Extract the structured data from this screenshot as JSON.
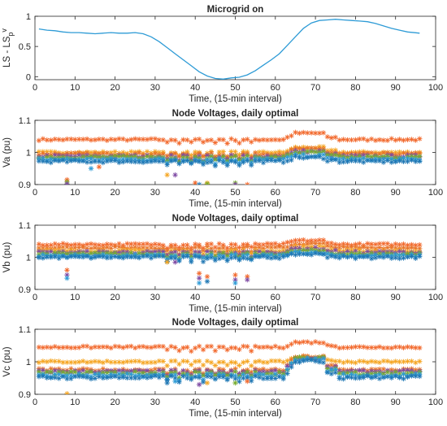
{
  "chart_data": [
    {
      "type": "line",
      "title": "Microgrid on",
      "xlabel": "Time, (15-min interval)",
      "ylabel": "LS - LS",
      "ylabel_sub": "p",
      "ylabel_sup": "v",
      "xlim": [
        0,
        100
      ],
      "ylim": [
        -0.05,
        1
      ],
      "xticks": [
        0,
        10,
        20,
        30,
        40,
        50,
        60,
        70,
        80,
        90,
        100
      ],
      "yticks": [
        0,
        0.5,
        1
      ],
      "ytick_labels": [
        "0",
        "0.5",
        "1"
      ],
      "color": "#2E9BD6",
      "series": [
        {
          "x": [
            1,
            3,
            5,
            7,
            9,
            11,
            13,
            15,
            17,
            19,
            21,
            23,
            25,
            27,
            29,
            31,
            33,
            35,
            37,
            39,
            41,
            43,
            45,
            47,
            49,
            51,
            53,
            55,
            57,
            59,
            61,
            63,
            65,
            67,
            69,
            71,
            73,
            75,
            77,
            79,
            81,
            83,
            85,
            87,
            89,
            91,
            93,
            96
          ],
          "values": [
            0.79,
            0.77,
            0.76,
            0.74,
            0.73,
            0.73,
            0.72,
            0.71,
            0.72,
            0.73,
            0.72,
            0.72,
            0.73,
            0.71,
            0.66,
            0.58,
            0.48,
            0.38,
            0.28,
            0.18,
            0.08,
            0.01,
            -0.03,
            -0.04,
            -0.02,
            -0.01,
            0.03,
            0.1,
            0.19,
            0.28,
            0.38,
            0.52,
            0.66,
            0.8,
            0.89,
            0.93,
            0.94,
            0.95,
            0.94,
            0.93,
            0.92,
            0.91,
            0.88,
            0.84,
            0.8,
            0.77,
            0.74,
            0.72
          ]
        }
      ]
    },
    {
      "type": "scatter",
      "title": "Node Voltages, daily optimal",
      "xlabel": "Time, (15-min interval)",
      "ylabel": "Va (pu)",
      "xlim": [
        0,
        100
      ],
      "ylim": [
        0.9,
        1.1
      ],
      "xticks": [
        0,
        10,
        20,
        30,
        40,
        50,
        60,
        70,
        80,
        90,
        100
      ],
      "yticks": [
        0.9,
        1,
        1.1
      ],
      "ytick_labels": [
        "0.9",
        "1",
        "1.1"
      ],
      "x_range": [
        1,
        96
      ],
      "series": [
        {
          "name": "",
          "base": 1.04,
          "noise": 0.003,
          "color": "#F26A2E",
          "bump": 0.02
        },
        {
          "name": "",
          "base": 1.0,
          "noise": 0.003,
          "color": "#F5A623",
          "bump": 0.015
        },
        {
          "name": "",
          "base": 0.995,
          "noise": 0.004,
          "color": "#E8742A",
          "bump": 0.015
        },
        {
          "name": "",
          "base": 0.988,
          "noise": 0.004,
          "color": "#7E4AA3",
          "bump": 0.015
        },
        {
          "name": "",
          "base": 0.985,
          "noise": 0.004,
          "color": "#77AC30",
          "bump": 0.015
        },
        {
          "name": "",
          "base": 0.978,
          "noise": 0.004,
          "color": "#2E9BD6",
          "bump": 0.012
        },
        {
          "name": "",
          "base": 0.972,
          "noise": 0.004,
          "color": "#1F77B4",
          "bump": 0.012
        }
      ],
      "outliers": [
        {
          "x": 8,
          "y": 0.915,
          "color": "#F26A2E"
        },
        {
          "x": 8,
          "y": 0.908,
          "color": "#77AC30"
        },
        {
          "x": 8,
          "y": 0.902,
          "color": "#7E4AA3"
        },
        {
          "x": 40,
          "y": 0.905,
          "color": "#F26A2E"
        },
        {
          "x": 41,
          "y": 0.9,
          "color": "#1F77B4"
        },
        {
          "x": 43,
          "y": 0.905,
          "color": "#F5A623"
        },
        {
          "x": 43,
          "y": 0.902,
          "color": "#77AC30"
        },
        {
          "x": 50,
          "y": 0.905,
          "color": "#77AC30"
        },
        {
          "x": 50,
          "y": 0.9,
          "color": "#7E4AA3"
        },
        {
          "x": 53,
          "y": 0.9,
          "color": "#F26A2E"
        },
        {
          "x": 33,
          "y": 0.93,
          "color": "#F5A623"
        },
        {
          "x": 35,
          "y": 0.93,
          "color": "#7E4AA3"
        },
        {
          "x": 14,
          "y": 0.95,
          "color": "#2E9BD6"
        },
        {
          "x": 16,
          "y": 0.955,
          "color": "#F26A2E"
        }
      ]
    },
    {
      "type": "scatter",
      "title": "Node Voltages, daily optimal",
      "xlabel": "Time, (15-min interval)",
      "ylabel": "Vb (pu)",
      "xlim": [
        0,
        100
      ],
      "ylim": [
        0.9,
        1.1
      ],
      "xticks": [
        0,
        10,
        20,
        30,
        40,
        50,
        60,
        70,
        80,
        90,
        100
      ],
      "yticks": [
        0.9,
        1,
        1.1
      ],
      "ytick_labels": [
        "0.9",
        "1",
        "1.1"
      ],
      "x_range": [
        1,
        96
      ],
      "series": [
        {
          "name": "",
          "base": 1.04,
          "noise": 0.003,
          "color": "#F26A2E",
          "bump": 0.012
        },
        {
          "name": "",
          "base": 1.03,
          "noise": 0.003,
          "color": "#E8742A",
          "bump": 0.012
        },
        {
          "name": "",
          "base": 1.02,
          "noise": 0.003,
          "color": "#F5A623",
          "bump": 0.012
        },
        {
          "name": "",
          "base": 1.015,
          "noise": 0.004,
          "color": "#7E4AA3",
          "bump": 0.012
        },
        {
          "name": "",
          "base": 1.01,
          "noise": 0.004,
          "color": "#77AC30",
          "bump": 0.01
        },
        {
          "name": "",
          "base": 1.005,
          "noise": 0.004,
          "color": "#2E9BD6",
          "bump": 0.01
        },
        {
          "name": "",
          "base": 1.0,
          "noise": 0.004,
          "color": "#1F77B4",
          "bump": 0.01
        }
      ],
      "outliers": [
        {
          "x": 8,
          "y": 0.96,
          "color": "#F26A2E"
        },
        {
          "x": 8,
          "y": 0.945,
          "color": "#7E4AA3"
        },
        {
          "x": 8,
          "y": 0.935,
          "color": "#2E9BD6"
        },
        {
          "x": 41,
          "y": 0.95,
          "color": "#F26A2E"
        },
        {
          "x": 41,
          "y": 0.935,
          "color": "#7E4AA3"
        },
        {
          "x": 41,
          "y": 0.92,
          "color": "#2E9BD6"
        },
        {
          "x": 43,
          "y": 0.94,
          "color": "#F26A2E"
        },
        {
          "x": 43,
          "y": 0.925,
          "color": "#1F77B4"
        },
        {
          "x": 50,
          "y": 0.945,
          "color": "#F26A2E"
        },
        {
          "x": 50,
          "y": 0.93,
          "color": "#7E4AA3"
        },
        {
          "x": 50,
          "y": 0.92,
          "color": "#2E9BD6"
        },
        {
          "x": 53,
          "y": 0.94,
          "color": "#F26A2E"
        },
        {
          "x": 53,
          "y": 0.93,
          "color": "#7E4AA3"
        },
        {
          "x": 33,
          "y": 0.985,
          "color": "#F5A623"
        },
        {
          "x": 35,
          "y": 0.985,
          "color": "#7E4AA3"
        }
      ]
    },
    {
      "type": "scatter",
      "title": "Node Voltages, daily optimal",
      "xlabel": "Time, (15-min interval)",
      "ylabel": "Vc (pu)",
      "xlim": [
        0,
        100
      ],
      "ylim": [
        0.9,
        1.1
      ],
      "xticks": [
        0,
        10,
        20,
        30,
        40,
        50,
        60,
        70,
        80,
        90,
        100
      ],
      "yticks": [
        0.9,
        1,
        1.1
      ],
      "ytick_labels": [
        "0.9",
        "1",
        "1.1"
      ],
      "x_range": [
        1,
        96
      ],
      "series": [
        {
          "name": "",
          "base": 1.045,
          "noise": 0.003,
          "color": "#F26A2E",
          "bump": 0.015
        },
        {
          "name": "",
          "base": 1.0,
          "noise": 0.003,
          "color": "#F5A623",
          "bump": 0.015
        },
        {
          "name": "",
          "base": 0.975,
          "noise": 0.004,
          "color": "#E8742A",
          "bump": 0.04
        },
        {
          "name": "",
          "base": 0.97,
          "noise": 0.004,
          "color": "#7E4AA3",
          "bump": 0.04
        },
        {
          "name": "",
          "base": 0.965,
          "noise": 0.005,
          "color": "#77AC30",
          "bump": 0.045
        },
        {
          "name": "",
          "base": 0.958,
          "noise": 0.005,
          "color": "#2E9BD6",
          "bump": 0.05
        },
        {
          "name": "",
          "base": 0.952,
          "noise": 0.005,
          "color": "#1F77B4",
          "bump": 0.05
        }
      ],
      "outliers": [
        {
          "x": 8,
          "y": 0.902,
          "color": "#F5A623"
        },
        {
          "x": 33,
          "y": 0.935,
          "color": "#1F77B4"
        },
        {
          "x": 35,
          "y": 0.94,
          "color": "#2E9BD6"
        },
        {
          "x": 41,
          "y": 0.93,
          "color": "#7E4AA3"
        },
        {
          "x": 43,
          "y": 0.935,
          "color": "#F5A623"
        },
        {
          "x": 50,
          "y": 0.935,
          "color": "#77AC30"
        },
        {
          "x": 53,
          "y": 0.94,
          "color": "#F26A2E"
        }
      ]
    }
  ]
}
